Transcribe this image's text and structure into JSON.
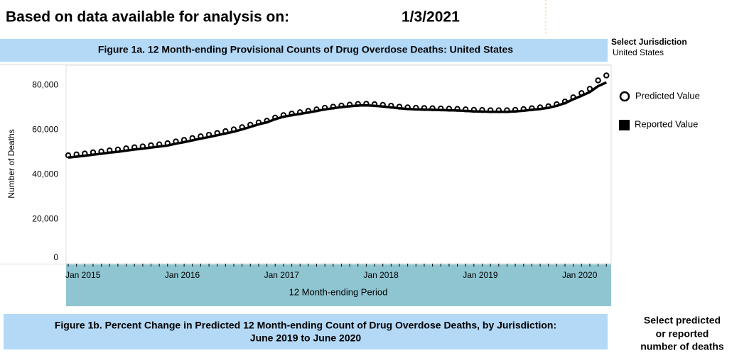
{
  "header": {
    "label": "Based on data available for analysis on:",
    "date": "1/3/2021"
  },
  "jurisdiction": {
    "label": "Select Jurisdiction",
    "value": "United States"
  },
  "chart_data": {
    "type": "line",
    "title": "Figure 1a. 12 Month-ending Provisional Counts of Drug Overdose Deaths: United States",
    "y_label": "Number of Deaths",
    "x_label": "12 Month-ending Period",
    "categories": [
      "Jan 2015",
      null,
      null,
      null,
      null,
      null,
      null,
      null,
      null,
      null,
      null,
      null,
      "Jan 2016",
      null,
      null,
      null,
      null,
      null,
      null,
      null,
      null,
      null,
      null,
      null,
      "Jan 2017",
      null,
      null,
      null,
      null,
      null,
      null,
      null,
      null,
      null,
      null,
      null,
      "Jan 2018",
      null,
      null,
      null,
      null,
      null,
      null,
      null,
      null,
      null,
      null,
      null,
      "Jan 2019",
      null,
      null,
      null,
      null,
      null,
      null,
      null,
      null,
      null,
      null,
      null,
      "Jan 2020",
      null,
      null,
      null,
      null,
      null
    ],
    "series": [
      {
        "name": "Predicted Value",
        "color": "#000000",
        "marker": "circle",
        "values": [
          48600,
          49000,
          49400,
          49900,
          50300,
          50800,
          51200,
          51700,
          52200,
          52600,
          53100,
          53500,
          54000,
          54800,
          55500,
          56300,
          57100,
          57800,
          58600,
          59400,
          60200,
          61200,
          62300,
          63300,
          64100,
          65500,
          66600,
          67300,
          67900,
          68500,
          69200,
          69900,
          70400,
          70900,
          71300,
          71600,
          71700,
          71500,
          71200,
          70800,
          70400,
          70100,
          69900,
          69800,
          69700,
          69600,
          69500,
          69400,
          69200,
          69000,
          68900,
          68800,
          68800,
          68800,
          69000,
          69300,
          69700,
          70100,
          70600,
          71500,
          72700,
          74600,
          76500,
          78400,
          82200,
          84400
        ]
      },
      {
        "name": "Reported Value",
        "color": "#000000",
        "marker": "line",
        "values": [
          47600,
          48000,
          48400,
          48900,
          49300,
          49800,
          50200,
          50700,
          51200,
          51600,
          52100,
          52500,
          53000,
          53800,
          54500,
          55300,
          56100,
          56800,
          57600,
          58400,
          59200,
          60200,
          61300,
          62500,
          63400,
          64800,
          65900,
          66600,
          67200,
          67800,
          68500,
          69200,
          69700,
          70200,
          70600,
          70900,
          71000,
          70800,
          70500,
          70100,
          69700,
          69400,
          69200,
          69100,
          69000,
          68900,
          68800,
          68700,
          68500,
          68300,
          68200,
          68100,
          68100,
          68100,
          68300,
          68600,
          69000,
          69400,
          69900,
          70800,
          72000,
          73700,
          75300,
          77000,
          79600,
          81300
        ]
      }
    ],
    "ylim": [
      0,
      89000
    ],
    "yticks": [
      0,
      {
        "value": 20000,
        "label": "20,000"
      },
      {
        "value": 40000,
        "label": "40,000"
      },
      {
        "value": 60000,
        "label": "60,000"
      },
      {
        "value": 80000,
        "label": "80,000"
      }
    ],
    "grid": false
  },
  "figure_1b": {
    "title_lines": [
      "Figure 1b. Percent Change in Predicted 12 Month-ending Count of Drug Overdose Deaths, by Jurisdiction:",
      "June 2019 to June 2020"
    ]
  },
  "selector": {
    "lines": [
      "Select predicted",
      "or reported",
      "number of deaths"
    ]
  }
}
